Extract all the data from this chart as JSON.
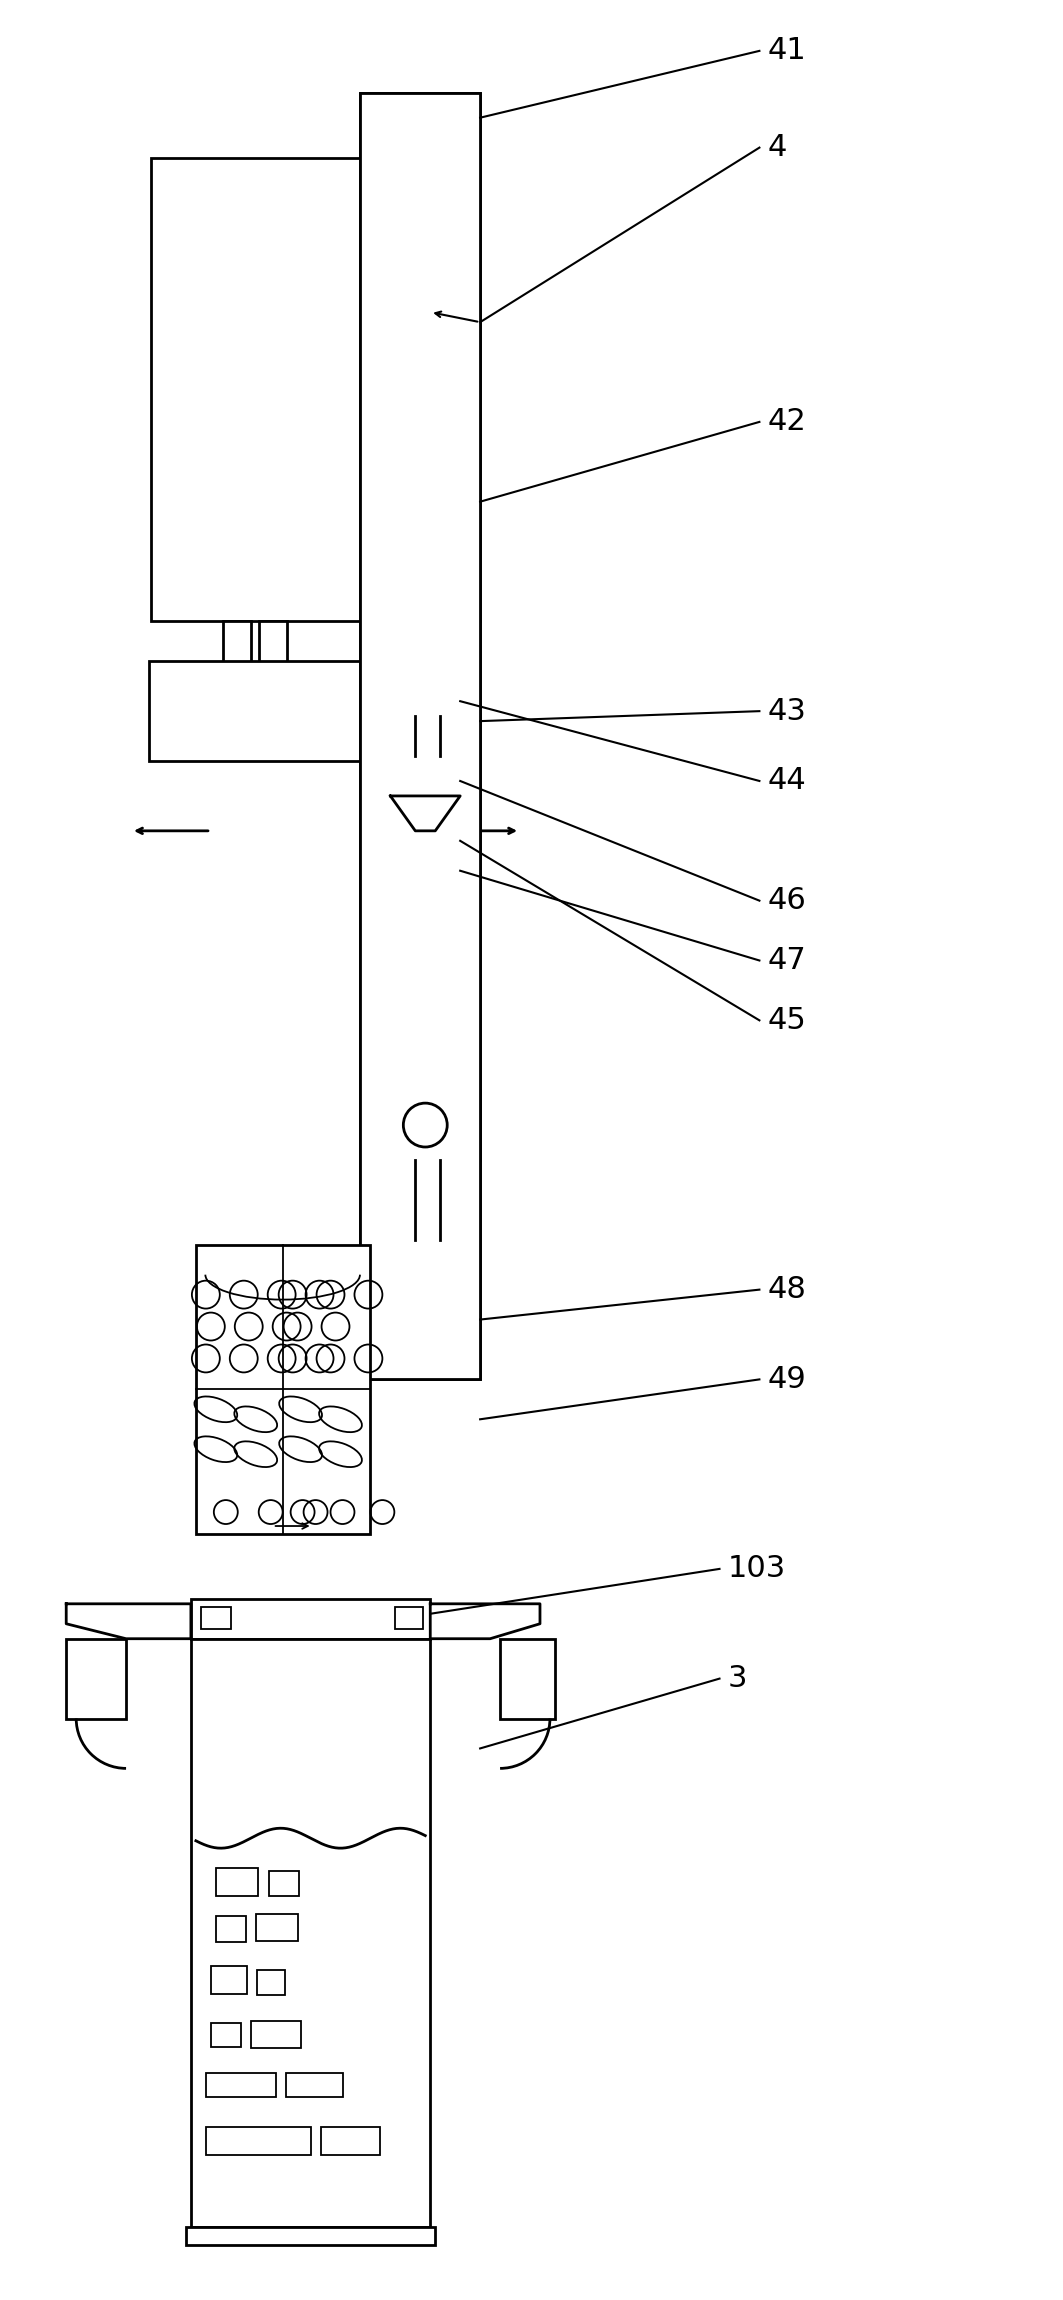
{
  "bg_color": "#ffffff",
  "lc": "#000000",
  "lw": 2.0,
  "tlw": 1.3,
  "fig_w": 10.63,
  "fig_h": 23.0
}
